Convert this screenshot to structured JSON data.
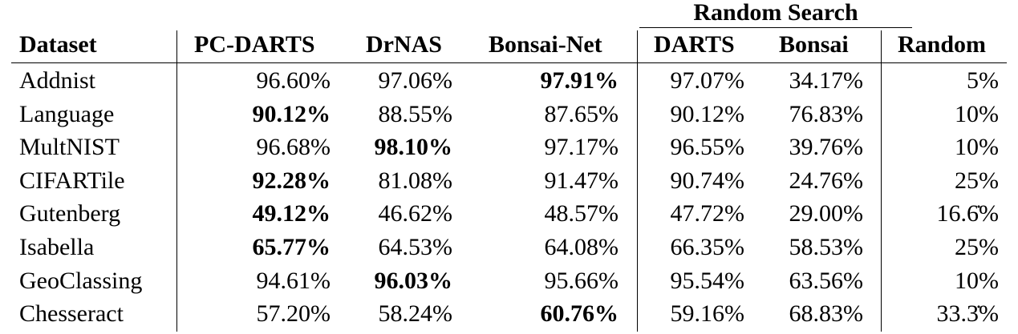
{
  "table": {
    "group_header": "Random Search",
    "columns": [
      "Dataset",
      "PC-DARTS",
      "DrNAS",
      "Bonsai-Net",
      "DARTS",
      "Bonsai",
      "Random"
    ],
    "rows": [
      {
        "cells": [
          "Addnist",
          "96.60%",
          "97.06%",
          "97.91%",
          "97.07%",
          "34.17%",
          "5%"
        ],
        "bold_col": 3
      },
      {
        "cells": [
          "Language",
          "90.12%",
          "88.55%",
          "87.65%",
          "90.12%",
          "76.83%",
          "10%"
        ],
        "bold_col": 1
      },
      {
        "cells": [
          "MultNIST",
          "96.68%",
          "98.10%",
          "97.17%",
          "96.55%",
          "39.76%",
          "10%"
        ],
        "bold_col": 2
      },
      {
        "cells": [
          "CIFARTile",
          "92.28%",
          "81.08%",
          "91.47%",
          "90.74%",
          "24.76%",
          "25%"
        ],
        "bold_col": 1
      },
      {
        "cells": [
          "Gutenberg",
          "49.12%",
          "46.62%",
          "48.57%",
          "47.72%",
          "29.00%",
          "16.6̇%"
        ],
        "bold_col": 1
      },
      {
        "cells": [
          "Isabella",
          "65.77%",
          "64.53%",
          "64.08%",
          "66.35%",
          "58.53%",
          "25%"
        ],
        "bold_col": 1
      },
      {
        "cells": [
          "GeoClassing",
          "94.61%",
          "96.03%",
          "95.66%",
          "95.54%",
          "63.56%",
          "10%"
        ],
        "bold_col": 2
      },
      {
        "cells": [
          "Chesseract",
          "57.20%",
          "58.24%",
          "60.76%",
          "59.16%",
          "68.83%",
          "33.3̇%"
        ],
        "bold_col": 3
      }
    ]
  }
}
